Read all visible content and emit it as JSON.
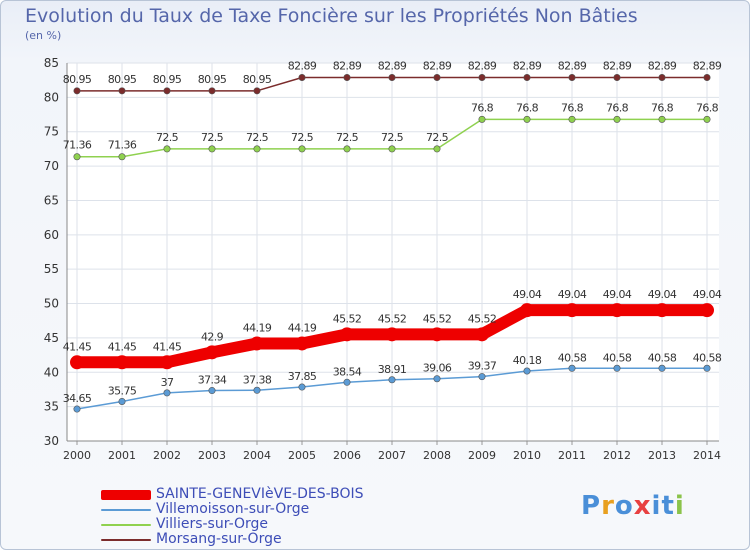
{
  "header": {
    "title": "Evolution du Taux de Taxe Foncière sur les Propriétés Non Bâties",
    "subtitle": "(en %)"
  },
  "logo": {
    "text": "Proxiti",
    "colors": [
      "#4a8fd8",
      "#e8a020",
      "#4a8fd8",
      "#e84040",
      "#4a8fd8",
      "#4a8fd8",
      "#8bc34a"
    ]
  },
  "chart_data": {
    "type": "line",
    "title": "Evolution du Taux de Taxe Foncière sur les Propriétés Non Bâties",
    "ylabel": "(en %)",
    "xlabel": "",
    "ylim": [
      30,
      85
    ],
    "yticks": [
      30,
      35,
      40,
      45,
      50,
      55,
      60,
      65,
      70,
      75,
      80,
      85
    ],
    "grid": true,
    "legend_position": "bottom-left",
    "categories": [
      "2000",
      "2001",
      "2002",
      "2003",
      "2004",
      "2005",
      "2006",
      "2007",
      "2008",
      "2009",
      "2010",
      "2011",
      "2012",
      "2013",
      "2014"
    ],
    "series": [
      {
        "name": "SAINTE-GENEVIèVE-DES-BOIS",
        "color": "#ee0000",
        "values": [
          41.45,
          41.45,
          41.45,
          42.9,
          44.19,
          44.19,
          45.52,
          45.52,
          45.52,
          45.52,
          49.04,
          49.04,
          49.04,
          49.04,
          49.04
        ],
        "labels": [
          "41.45",
          "41.45",
          "41.45",
          "42.9",
          "44.19",
          "44.19",
          "45.52",
          "45.52",
          "45.52",
          "45.52",
          "49.04",
          "49.04",
          "49.04",
          "49.04",
          "49.04"
        ]
      },
      {
        "name": "Villemoisson-sur-Orge",
        "color": "#5b9bd5",
        "values": [
          34.65,
          35.75,
          37,
          37.34,
          37.38,
          37.85,
          38.54,
          38.91,
          39.06,
          39.37,
          40.18,
          40.58,
          40.58,
          40.58,
          40.58
        ],
        "labels": [
          "34.65",
          "35.75",
          "37",
          "37.34",
          "37.38",
          "37.85",
          "38.54",
          "38.91",
          "39.06",
          "39.37",
          "40.18",
          "40.58",
          "40.58",
          "40.58",
          "40.58"
        ]
      },
      {
        "name": "Villiers-sur-Orge",
        "color": "#8fd14f",
        "values": [
          71.36,
          71.36,
          72.5,
          72.5,
          72.5,
          72.5,
          72.5,
          72.5,
          72.5,
          76.8,
          76.8,
          76.8,
          76.8,
          76.8,
          76.8
        ],
        "labels": [
          "71.36",
          "71.36",
          "72.5",
          "72.5",
          "72.5",
          "72.5",
          "72.5",
          "72.5",
          "72.5",
          "76.8",
          "76.8",
          "76.8",
          "76.8",
          "76.8",
          "76.8"
        ]
      },
      {
        "name": "Morsang-sur-Orge",
        "color": "#7b2c2c",
        "values": [
          80.95,
          80.95,
          80.95,
          80.95,
          80.95,
          82.89,
          82.89,
          82.89,
          82.89,
          82.89,
          82.89,
          82.89,
          82.89,
          82.89,
          82.89
        ],
        "labels": [
          "80.95",
          "80.95",
          "80.95",
          "80.95",
          "80.95",
          "82.89",
          "82.89",
          "82.89",
          "82.89",
          "82.89",
          "82.89",
          "82.89",
          "82.89",
          "82.89",
          "82.89"
        ]
      }
    ]
  }
}
